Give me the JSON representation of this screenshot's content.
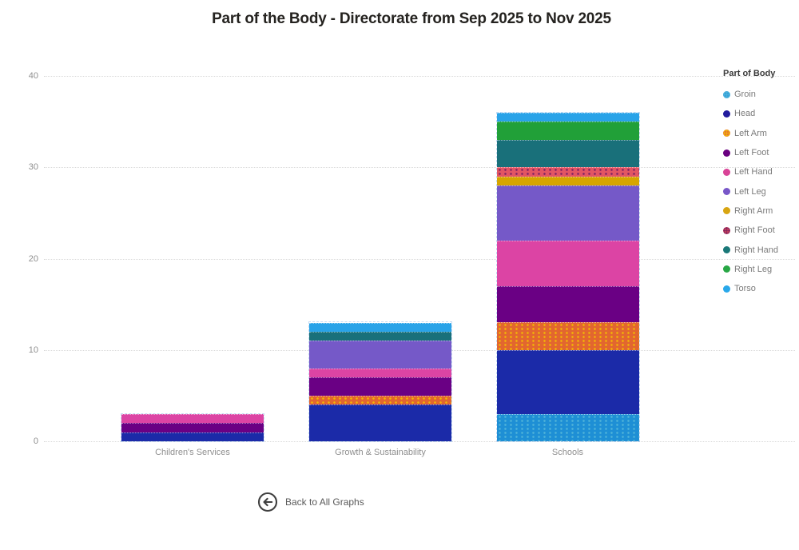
{
  "title": "Part of the Body - Directorate from Sep 2025 to Nov 2025",
  "legend": {
    "title": "Part of Body",
    "position": "right"
  },
  "back_button": {
    "label": "Back to All Graphs",
    "icon": "arrow-left-circle-icon"
  },
  "axis": {
    "y_tick_labels": [
      "0",
      "10",
      "20",
      "30",
      "40"
    ],
    "tick_text_color": "#8f8f8f",
    "gridline_color": "#d9d9d9",
    "gridline_style": "dotted"
  },
  "chart_data": {
    "type": "bar",
    "stacked": true,
    "title": "Part of the Body - Directorate from Sep 2025 to Nov 2025",
    "xlabel": "",
    "ylabel": "",
    "ylim": [
      0,
      40
    ],
    "yticks": [
      0,
      10,
      20,
      30,
      40
    ],
    "grid": "horizontal-dotted",
    "legend_position": "right",
    "stack_order": "alphabetical-bottom-to-top",
    "categories": [
      "Children's Services",
      "Growth & Sustainability",
      "Schools"
    ],
    "category_totals": [
      3,
      13,
      36
    ],
    "series": [
      {
        "name": "Groin",
        "color": "#1e8fd5",
        "legend_color": "#2d9cdb",
        "pattern": "dots",
        "pattern_color": "#4fb3d9",
        "values": [
          0,
          0,
          3
        ]
      },
      {
        "name": "Head",
        "color": "#1b2aa8",
        "legend_color": "#221c9e",
        "pattern": null,
        "pattern_color": null,
        "values": [
          1,
          4,
          7
        ]
      },
      {
        "name": "Left Arm",
        "color": "#e2662f",
        "legend_color": "#e2613b",
        "pattern": "dots",
        "pattern_color": "#f2b705",
        "values": [
          0,
          1,
          3
        ]
      },
      {
        "name": "Left Foot",
        "color": "#6a0084",
        "legend_color": "#6a0080",
        "pattern": null,
        "pattern_color": null,
        "values": [
          1,
          2,
          4
        ]
      },
      {
        "name": "Left Hand",
        "color": "#dc44a4",
        "legend_color": "#d94397",
        "pattern": null,
        "pattern_color": null,
        "values": [
          1,
          1,
          5
        ]
      },
      {
        "name": "Left Leg",
        "color": "#7559c8",
        "legend_color": "#7857c8",
        "pattern": null,
        "pattern_color": null,
        "values": [
          0,
          3,
          6
        ]
      },
      {
        "name": "Right Arm",
        "color": "#d6a500",
        "legend_color": "#d8a511",
        "pattern": null,
        "pattern_color": null,
        "values": [
          0,
          0,
          1
        ]
      },
      {
        "name": "Right Foot",
        "color": "#e25563",
        "legend_color": "#dd4855",
        "pattern": "dots",
        "pattern_color": "#7e2362",
        "values": [
          0,
          0,
          1
        ]
      },
      {
        "name": "Right Hand",
        "color": "#19707a",
        "legend_color": "#1a7878",
        "pattern": null,
        "pattern_color": null,
        "values": [
          0,
          1,
          3
        ]
      },
      {
        "name": "Right Leg",
        "color": "#21a038",
        "legend_color": "#28a745",
        "pattern": null,
        "pattern_color": null,
        "values": [
          0,
          0,
          2
        ]
      },
      {
        "name": "Torso",
        "color": "#29a3e8",
        "legend_color": "#29a8ea",
        "pattern": null,
        "pattern_color": null,
        "values": [
          0,
          1,
          1
        ]
      }
    ]
  }
}
